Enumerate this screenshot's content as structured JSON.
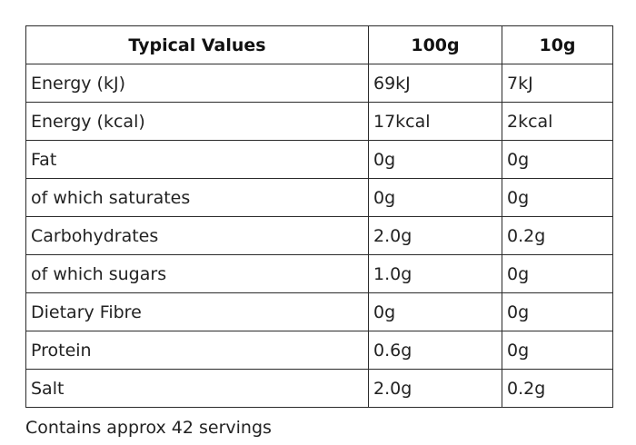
{
  "table": {
    "headers": [
      "Typical Values",
      "100g",
      "10g"
    ],
    "rows": [
      [
        "Energy (kJ)",
        "69kJ",
        "7kJ"
      ],
      [
        "Energy (kcal)",
        "17kcal",
        "2kcal"
      ],
      [
        "Fat",
        "0g",
        "0g"
      ],
      [
        "of which saturates",
        "0g",
        "0g"
      ],
      [
        "Carbohydrates",
        "2.0g",
        "0.2g"
      ],
      [
        "of which sugars",
        "1.0g",
        "0g"
      ],
      [
        "Dietary Fibre",
        "0g",
        "0g"
      ],
      [
        "Protein",
        "0.6g",
        "0g"
      ],
      [
        "Salt",
        "2.0g",
        "0.2g"
      ]
    ]
  },
  "footnote": "Contains approx 42 servings"
}
